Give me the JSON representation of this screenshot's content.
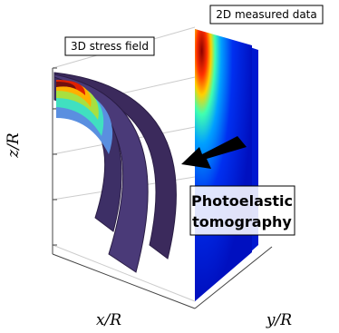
{
  "labels": {
    "measured": "2D measured data",
    "stress": "3D stress field",
    "z_axis": "z/R",
    "x_axis": "x/R",
    "y_axis": "y/R",
    "method": [
      "Photoelastic",
      "tomography"
    ]
  }
}
